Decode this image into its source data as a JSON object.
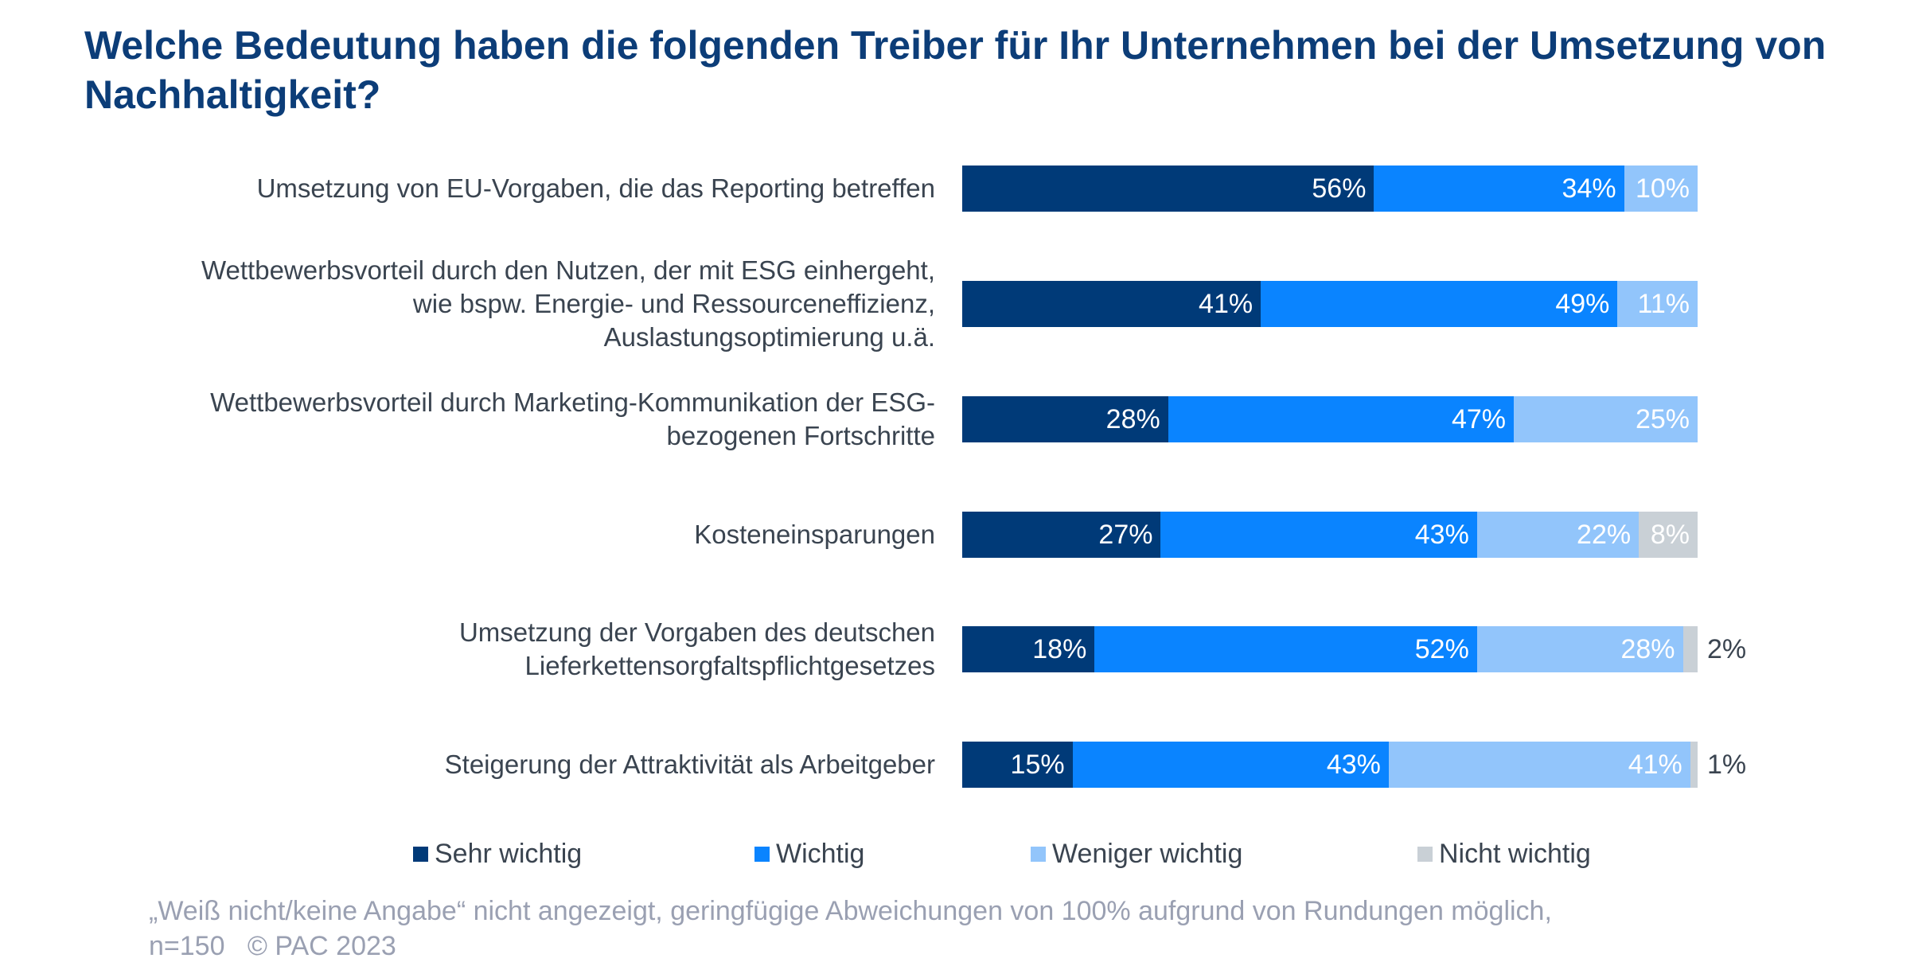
{
  "chart_data": {
    "type": "bar",
    "orientation": "horizontal",
    "stacked": true,
    "title": "Welche Bedeutung haben die folgenden Treiber für Ihr Unternehmen bei der Umsetzung von Nachhaltigkeit?",
    "categories": [
      "Umsetzung von EU-Vorgaben, die das Reporting betreffen",
      "Wettbewerbsvorteil durch den Nutzen, der mit ESG einhergeht, wie bspw. Energie- und Ressourceneffizienz, Auslastungsoptimierung u.ä.",
      "Wettbewerbsvorteil durch Marketing-Kommunikation der ESG-bezogenen Fortschritte",
      "Kosteneinsparungen",
      "Umsetzung der Vorgaben des deutschen Lieferkettensorgfaltspflichtgesetzes",
      "Steigerung der Attraktivität als Arbeitgeber"
    ],
    "series": [
      {
        "name": "Sehr wichtig",
        "color": "#003a78",
        "values": [
          56,
          41,
          28,
          27,
          18,
          15
        ]
      },
      {
        "name": "Wichtig",
        "color": "#0a84ff",
        "values": [
          34,
          49,
          47,
          43,
          52,
          43
        ]
      },
      {
        "name": "Weniger wichtig",
        "color": "#92c5fb",
        "values": [
          10,
          11,
          25,
          22,
          28,
          41
        ]
      },
      {
        "name": "Nicht wichtig",
        "color": "#c9d0d6",
        "values": [
          0,
          0,
          0,
          8,
          2,
          1
        ]
      }
    ],
    "unit": "%",
    "legend_position": "bottom",
    "grid": false
  },
  "footnote": {
    "line1": "„Weiß nicht/keine Angabe“ nicht angezeigt, geringfügige Abweichungen von 100% aufgrund von Rundungen möglich,",
    "line2": "n=150   © PAC 2023"
  }
}
